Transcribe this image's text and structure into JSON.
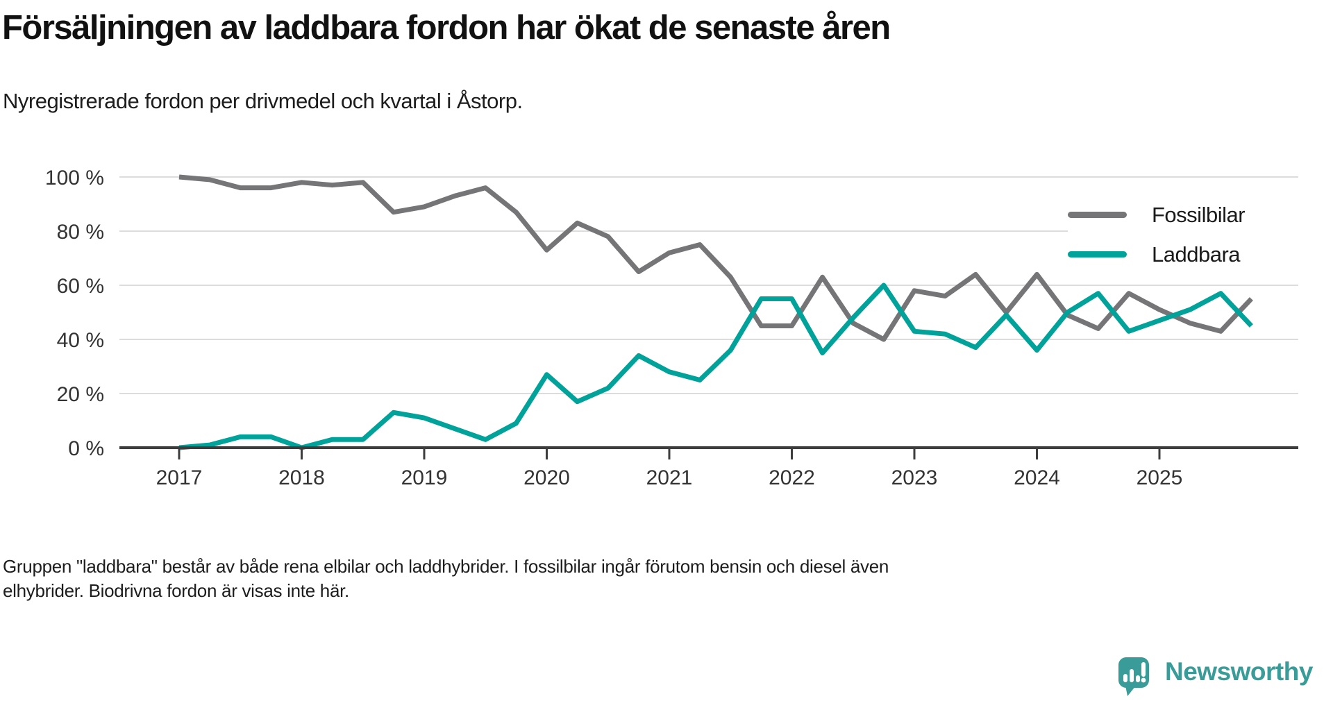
{
  "header": {
    "title": "Försäljningen av laddbara fordon har ökat de senaste åren",
    "subtitle": "Nyregistrerade fordon per drivmedel och kvartal i Åstorp."
  },
  "legend": {
    "items": [
      {
        "label": "Fossilbilar",
        "color": "#757578"
      },
      {
        "label": "Laddbara",
        "color": "#00a29a"
      }
    ]
  },
  "footnote": {
    "line1": "Gruppen \"laddbara\" består av både rena elbilar och laddhybrider. I fossilbilar ingår förutom bensin och diesel även",
    "line2": "elhybrider. Biodrivna fordon är visas inte här."
  },
  "logo": {
    "text": "Newsworthy",
    "color": "#3a9c98",
    "icon": "newsworthy-speech-bubble-bar-chart-icon"
  },
  "colors": {
    "fossil_line": "#757578",
    "laddbara_line": "#00a29a",
    "grid": "#dcdcdc",
    "axis": "#3d3d3d",
    "tick_text": "#333333",
    "title_text": "#111111"
  },
  "chart_data": {
    "type": "line",
    "title": "Nyregistrerade fordon per drivmedel och kvartal i Åstorp",
    "xlabel": "",
    "ylabel": "",
    "ylim": [
      0,
      100
    ],
    "grid": "horizontal",
    "legend_position": "inside-top-right",
    "yticks": [
      0,
      20,
      40,
      60,
      80,
      100
    ],
    "ytick_labels": [
      "0 %",
      "20 %",
      "40 %",
      "60 %",
      "80 %",
      "100 %"
    ],
    "xtick_labels": [
      "2017",
      "2018",
      "2019",
      "2020",
      "2021",
      "2022",
      "2023",
      "2024",
      "2025"
    ],
    "x": [
      "2017 Q1",
      "2017 Q2",
      "2017 Q3",
      "2017 Q4",
      "2018 Q1",
      "2018 Q2",
      "2018 Q3",
      "2018 Q4",
      "2019 Q1",
      "2019 Q2",
      "2019 Q3",
      "2019 Q4",
      "2020 Q1",
      "2020 Q2",
      "2020 Q3",
      "2020 Q4",
      "2021 Q1",
      "2021 Q2",
      "2021 Q3",
      "2021 Q4",
      "2022 Q1",
      "2022 Q2",
      "2022 Q3",
      "2022 Q4",
      "2023 Q1",
      "2023 Q2",
      "2023 Q3",
      "2023 Q4",
      "2024 Q1",
      "2024 Q2",
      "2024 Q3",
      "2024 Q4",
      "2025 Q1",
      "2025 Q2",
      "2025 Q3",
      "2025 Q4"
    ],
    "series": [
      {
        "name": "Fossilbilar",
        "color": "#757578",
        "values": [
          100,
          99,
          96,
          96,
          98,
          97,
          98,
          87,
          89,
          93,
          96,
          87,
          73,
          83,
          78,
          65,
          72,
          75,
          63,
          45,
          45,
          63,
          46,
          40,
          58,
          56,
          64,
          50,
          64,
          49,
          44,
          57,
          51,
          46,
          43,
          55
        ]
      },
      {
        "name": "Laddbara",
        "color": "#00a29a",
        "values": [
          0,
          1,
          4,
          4,
          0,
          3,
          3,
          13,
          11,
          7,
          3,
          9,
          27,
          17,
          22,
          34,
          28,
          25,
          36,
          55,
          55,
          35,
          48,
          60,
          43,
          42,
          37,
          49,
          36,
          50,
          57,
          43,
          47,
          51,
          57,
          45
        ]
      }
    ]
  }
}
